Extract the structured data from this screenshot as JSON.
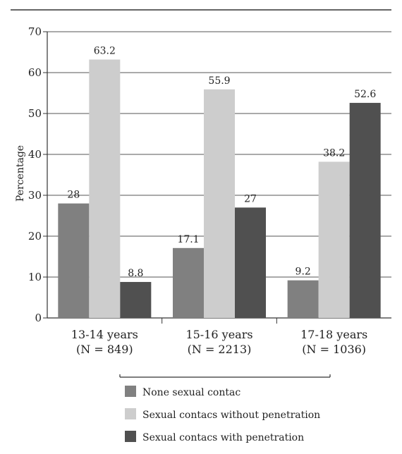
{
  "chart_data": {
    "type": "bar",
    "title": "",
    "xlabel": "",
    "ylabel": "Percentage",
    "ylim": [
      0,
      70
    ],
    "yticks": [
      0,
      10,
      20,
      30,
      40,
      50,
      60,
      70
    ],
    "grid": true,
    "legend_position": "bottom",
    "categories": [
      [
        "13-14 years",
        "(N = 849)"
      ],
      [
        "15-16 years",
        "(N = 2213)"
      ],
      [
        "17-18 years",
        "(N = 1036)"
      ]
    ],
    "series": [
      {
        "name": "None sexual contac",
        "color": "#808080",
        "values": [
          28,
          17.1,
          9.2
        ]
      },
      {
        "name": "Sexual contacs without penetration",
        "color": "#cdcdcd",
        "values": [
          63.2,
          55.9,
          38.2
        ]
      },
      {
        "name": "Sexual contacs with penetration",
        "color": "#505050",
        "values": [
          8.8,
          27,
          52.6
        ]
      }
    ]
  }
}
